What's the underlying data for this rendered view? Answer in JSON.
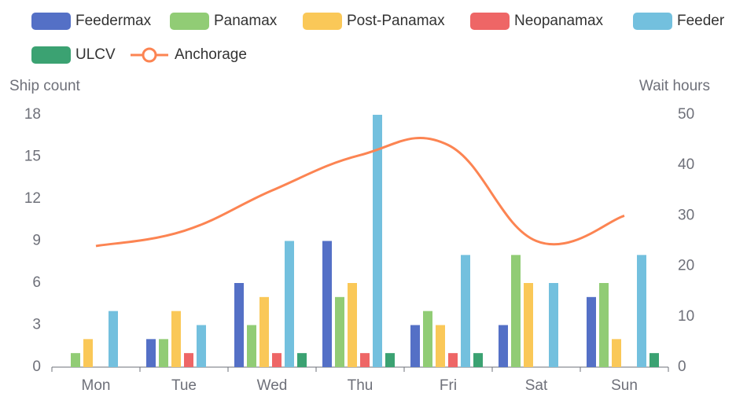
{
  "chart_data": {
    "type": "bar",
    "categories": [
      "Mon",
      "Tue",
      "Wed",
      "Thu",
      "Fri",
      "Sat",
      "Sun"
    ],
    "series": [
      {
        "name": "Feedermax",
        "color": "#5470c6",
        "values": [
          0,
          2,
          6,
          9,
          3,
          3,
          5
        ]
      },
      {
        "name": "Panamax",
        "color": "#91cc75",
        "values": [
          1,
          2,
          3,
          5,
          4,
          8,
          6
        ]
      },
      {
        "name": "Post-Panamax",
        "color": "#fac858",
        "values": [
          2,
          4,
          5,
          6,
          3,
          6,
          2
        ]
      },
      {
        "name": "Neopanamax",
        "color": "#ee6666",
        "values": [
          0,
          1,
          1,
          1,
          1,
          0,
          0
        ]
      },
      {
        "name": "Feeder",
        "color": "#73c0de",
        "values": [
          4,
          3,
          9,
          18,
          8,
          6,
          8
        ]
      },
      {
        "name": "ULCV",
        "color": "#3ba272",
        "values": [
          0,
          0,
          1,
          1,
          1,
          0,
          1
        ]
      },
      {
        "name": "Anchorage",
        "color": "#fc8452",
        "type": "line",
        "smooth": true,
        "axis": "y2",
        "values": [
          24,
          27,
          35,
          42,
          44,
          25,
          30
        ]
      }
    ],
    "ylabel": "Ship count",
    "y2label": "Wait hours",
    "ylim": [
      0,
      18
    ],
    "yticks": [
      0,
      3,
      6,
      9,
      12,
      15,
      18
    ],
    "y2lim": [
      0,
      50
    ],
    "y2ticks": [
      0,
      10,
      20,
      30,
      40,
      50
    ]
  }
}
